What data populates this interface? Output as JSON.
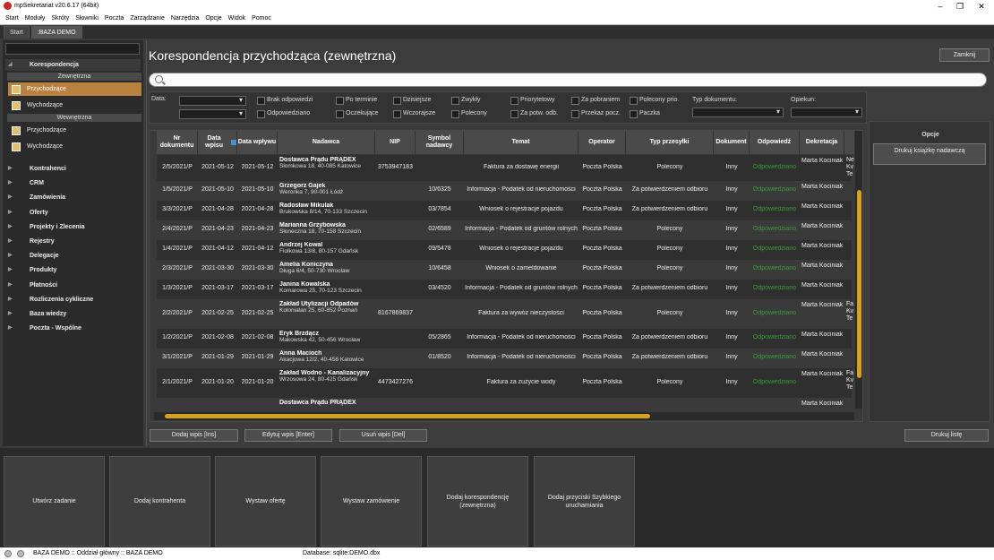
{
  "window": {
    "title": "mpSekretariat v20.6.17 (64bit)"
  },
  "menu": [
    "Start",
    "Moduły",
    "Skróty",
    "Słowniki",
    "Poczta",
    "Zarządzanie",
    "Narzędzia",
    "Opcje",
    "Widok",
    "Pomoc"
  ],
  "tabs": [
    "Start",
    ":BAZA DEMO"
  ],
  "sidebar": {
    "korespondencja": "Korespondencja",
    "zewnetrzna": "Zewnętrzna",
    "przychodzace": "Przychodzące",
    "wychodzace": "Wychodzące",
    "wewnetrzna": "Wewnętrzna",
    "przychodzace2": "Przychodzące",
    "wychodzace2": "Wychodzące",
    "categories": [
      "Kontrahenci",
      "CRM",
      "Zamówienia",
      "Oferty",
      "Projekty i Zlecenia",
      "Rejestry",
      "Delegacje",
      "Produkty",
      "Płatności",
      "Rozliczenia cykliczne",
      "Baza wiedzy",
      "Poczta - Wspólne"
    ]
  },
  "main": {
    "title": "Korespondencja przychodząca (zewnętrzna)",
    "close": "Zamknij"
  },
  "filters": {
    "data_label": "Data:",
    "brak_odpowiedzi": "Brak odpowiedzi",
    "odpowiedziano": "Odpowiedziano",
    "po_terminie": "Po terminie",
    "oczekujace": "Oczekujące",
    "dzisiejsze": "Dzisiejsze",
    "wczorajsze": "Wczorajsze",
    "zwykly": "Zwykły",
    "polecony": "Polecony",
    "priorytetowy": "Priorytetowy",
    "za_potw_odb": "Za potw. odb.",
    "za_pobraniem": "Za pobraniem",
    "przekaz_pocz": "Przekaz pocz.",
    "polecony_prio": "Polecony prio.",
    "paczka": "Paczka",
    "typ_dokumentu": "Typ dokumentu:",
    "opiekun": "Opiekun:"
  },
  "grid": {
    "headers": {
      "nr": "Nr dokumentu",
      "data_wpisu": "Data wpisu",
      "data_wplywu": "Data wpływu",
      "nadawca": "Nadawca",
      "nip": "NIP",
      "symbol": "Symbol nadawcy",
      "temat": "Temat",
      "operator": "Operator",
      "typ": "Typ przesyłki",
      "dokument": "Dokument",
      "odpowiedz": "Odpowiedź",
      "dekretacja": "Dekretacja"
    },
    "rows": [
      {
        "nr": "2/5/2021/P",
        "wpis": "2021-05-12",
        "wplyw": "2021-05-12",
        "nad": "Dostawca Prądu PRĄDEX",
        "adr": "Słomkowa 18, 40-085 Katowice",
        "nip": "3753947183",
        "sym": "",
        "temat": "Faktura za dostawę energii",
        "op": "Poczta Polska",
        "typ": "Polecony",
        "dok": "Inny",
        "odp": "Odpowiedziano",
        "dek": "Marta Kociniak",
        "ext": "Ne Kv Te"
      },
      {
        "nr": "1/5/2021/P",
        "wpis": "2021-05-10",
        "wplyw": "2021-05-10",
        "nad": "Grzegorz Gajek",
        "adr": "Weronka 7, 90-001 Łódź",
        "nip": "",
        "sym": "10/6325",
        "temat": "Informacja - Podatek od nieruchomości",
        "op": "Poczta Polska",
        "typ": "Za potwierdzeniem odbioru",
        "dok": "Inny",
        "odp": "Odpowiedziano",
        "dek": "Marta Kociniak",
        "ext": ""
      },
      {
        "nr": "3/3/2021/P",
        "wpis": "2021-04-28",
        "wplyw": "2021-04-28",
        "nad": "Radosław Mikulak",
        "adr": "Brukowska 8/14, 70-133 Szczecin",
        "nip": "",
        "sym": "03/7854",
        "temat": "Wniosek o rejestracje pojazdu",
        "op": "Poczta Polska",
        "typ": "Za potwierdzeniem odbioru",
        "dok": "Inny",
        "odp": "Odpowiedziano",
        "dek": "Marta Kociniak",
        "ext": ""
      },
      {
        "nr": "2/4/2021/P",
        "wpis": "2021-04-23",
        "wplyw": "2021-04-23",
        "nad": "Marianna Grzybowska",
        "adr": "Słoneczna 18, 70-158 Szczecin",
        "nip": "",
        "sym": "02/6589",
        "temat": "Informacja - Podatek od gruntów rolnych",
        "op": "Poczta Polska",
        "typ": "Polecony",
        "dok": "Inny",
        "odp": "Odpowiedziano",
        "dek": "Marta Kociniak",
        "ext": ""
      },
      {
        "nr": "1/4/2021/P",
        "wpis": "2021-04-12",
        "wplyw": "2021-04-12",
        "nad": "Andrzej Kowal",
        "adr": "Fiołkowa 13/8, 80-157 Gdańsk",
        "nip": "",
        "sym": "09/5478",
        "temat": "Wniosek o rejestracje pojazdu",
        "op": "Poczta Polska",
        "typ": "Polecony",
        "dok": "Inny",
        "odp": "Odpowiedziano",
        "dek": "Marta Kociniak",
        "ext": ""
      },
      {
        "nr": "2/3/2021/P",
        "wpis": "2021-03-30",
        "wplyw": "2021-03-30",
        "nad": "Amelia Koniczyna",
        "adr": "Długa 6/4, 50-730 Wrocław",
        "nip": "",
        "sym": "10/6458",
        "temat": "Wniosek o zameldowanie",
        "op": "Poczta Polska",
        "typ": "Polecony",
        "dok": "Inny",
        "odp": "Odpowiedziano",
        "dek": "Marta Kociniak",
        "ext": ""
      },
      {
        "nr": "1/3/2021/P",
        "wpis": "2021-03-17",
        "wplyw": "2021-03-17",
        "nad": "Janina Kowalska",
        "adr": "Komarowa 25, 70-123 Szczecin",
        "nip": "",
        "sym": "03/4520",
        "temat": "Informacja - Podatek od gruntów rolnych",
        "op": "Poczta Polska",
        "typ": "Za potwierdzeniem odbioru",
        "dok": "Inny",
        "odp": "Odpowiedziano",
        "dek": "Marta Kociniak",
        "ext": ""
      },
      {
        "nr": "2/2/2021/P",
        "wpis": "2021-02-25",
        "wplyw": "2021-02-25",
        "nad": "Zakład Utylizacji Odpadów",
        "adr": "Kolonialan 25, 60-852 Poznań",
        "nip": "8167869837",
        "sym": "",
        "temat": "Faktura za wywóz nieczystości",
        "op": "Poczta Polska",
        "typ": "Polecony",
        "dok": "Inny",
        "odp": "Odpowiedziano",
        "dek": "Marta Kociniak",
        "ext": "Fa Kv Te"
      },
      {
        "nr": "1/2/2021/P",
        "wpis": "2021-02-08",
        "wplyw": "2021-02-08",
        "nad": "Eryk Brzdącz",
        "adr": "Makowska 42, 50-456 Wrocław",
        "nip": "",
        "sym": "05/2865",
        "temat": "Informacja - Podatek od nieruchomości",
        "op": "Poczta Polska",
        "typ": "Za potwierdzeniem odbioru",
        "dok": "Inny",
        "odp": "Odpowiedziano",
        "dek": "Marta Kociniak",
        "ext": ""
      },
      {
        "nr": "3/1/2021/P",
        "wpis": "2021-01-29",
        "wplyw": "2021-01-29",
        "nad": "Anna Macioch",
        "adr": "Akacjowa 12/2, 40-456 Katowice",
        "nip": "",
        "sym": "01/8520",
        "temat": "Informacja - Podatek od nieruchomości",
        "op": "Poczta Polska",
        "typ": "Za potwierdzeniem odbioru",
        "dok": "Inny",
        "odp": "Odpowiedziano",
        "dek": "Marta Kociniak",
        "ext": ""
      },
      {
        "nr": "2/1/2021/P",
        "wpis": "2021-01-20",
        "wplyw": "2021-01-20",
        "nad": "Zakład Wodno - Kanalizacyjny",
        "adr": "Wrzosowa 24, 80-425 Gdańsk",
        "nip": "4473427276",
        "sym": "",
        "temat": "Faktura za zużycie wody",
        "op": "Poczta Polska",
        "typ": "Polecony",
        "dok": "Inny",
        "odp": "Odpowiedziano",
        "dek": "Marta Kociniak",
        "ext": "Fa Kv Te"
      },
      {
        "nr": "",
        "wpis": "",
        "wplyw": "",
        "nad": "Dostawca Prądu PRĄDEX",
        "adr": "",
        "nip": "",
        "sym": "",
        "temat": "",
        "op": "",
        "typ": "",
        "dok": "",
        "odp": "",
        "dek": "Marta Kociniak",
        "ext": ""
      }
    ]
  },
  "actions": {
    "dodaj": "Dodaj wpis [Ins]",
    "edytuj": "Edytuj wpis [Enter]",
    "usun": "Usuń wpis [Del]",
    "drukuj_liste": "Drukuj listę"
  },
  "options": {
    "title": "Opcje",
    "drukuj_ksiazke": "Drukuj książkę nadawczą"
  },
  "tiles": [
    "Utwórz zadanie",
    "Dodaj kontrahenta",
    "Wystaw ofertę",
    "Wystaw zamówienie",
    "Dodaj korespondencję (zewnętrzna)",
    "Dodaj przyciski Szybkiego uruchamiania"
  ],
  "status": {
    "left": "BAZA DEMO :: Oddział główny :: BAZA DEMO",
    "db": "Database: sqlite:DEMO.dbx"
  },
  "colors": {
    "accent": "#d6a020",
    "active_item": "#b8813f",
    "answered": "#3a9b3a"
  }
}
